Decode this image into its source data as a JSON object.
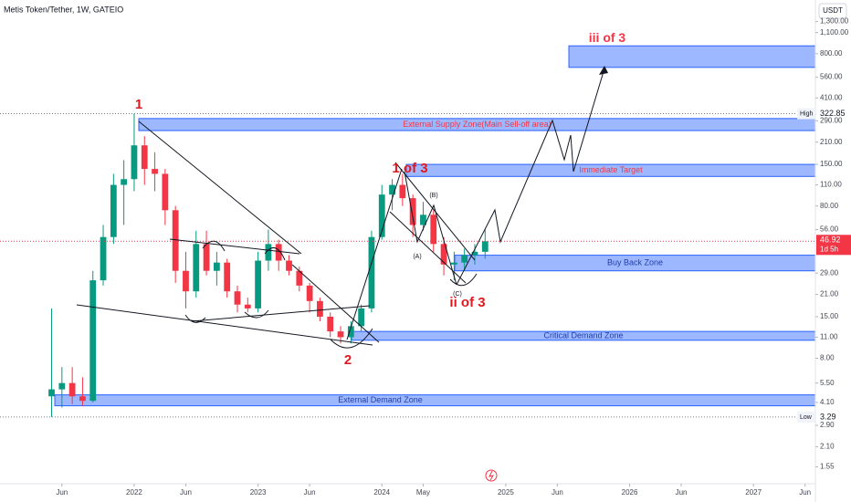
{
  "chart_data": {
    "type": "candlestick",
    "title": "Metis Token/Tether, 1W, GATEIO",
    "currency": "USDT",
    "log_scale": true,
    "grid": false,
    "up_color": "#089981",
    "down_color": "#f23645",
    "x": [
      "2021-05",
      "2021-06",
      "2021-07",
      "2021-08",
      "2021-09",
      "2021-10",
      "2021-11",
      "2021-12",
      "2022-01",
      "2022-02",
      "2022-03",
      "2022-04",
      "2022-05",
      "2022-06",
      "2022-07",
      "2022-08",
      "2022-09",
      "2022-10",
      "2022-11",
      "2022-12",
      "2023-01",
      "2023-02",
      "2023-03",
      "2023-04",
      "2023-05",
      "2023-06",
      "2023-07",
      "2023-08",
      "2023-09",
      "2023-10",
      "2023-11",
      "2023-12",
      "2024-01",
      "2024-02",
      "2024-03",
      "2024-04",
      "2024-05",
      "2024-06",
      "2024-07",
      "2024-08",
      "2024-09",
      "2024-10",
      "2024-11"
    ],
    "open": [
      4.5,
      5,
      5.5,
      4.5,
      4.2,
      26,
      50,
      110,
      120,
      200,
      140,
      130,
      75,
      30,
      22,
      45,
      30,
      34,
      22,
      18,
      17,
      35,
      45,
      35,
      30,
      24,
      19,
      15,
      12,
      11,
      13,
      17,
      50,
      95,
      110,
      90,
      60,
      70,
      45,
      33,
      34,
      38,
      40
    ],
    "high": [
      17,
      7,
      7,
      6,
      30,
      60,
      130,
      160,
      322.85,
      230,
      180,
      140,
      80,
      40,
      55,
      55,
      40,
      36,
      24,
      20,
      40,
      56,
      48,
      38,
      32,
      25,
      20,
      16,
      13,
      14,
      18,
      55,
      110,
      120,
      130,
      95,
      85,
      75,
      50,
      40,
      42,
      45,
      56
    ],
    "low": [
      3.29,
      3.8,
      4,
      3.9,
      4.1,
      24,
      45,
      60,
      100,
      110,
      100,
      60,
      25,
      17,
      20,
      28,
      24,
      20,
      16,
      16,
      16,
      30,
      30,
      28,
      22,
      16,
      14,
      11,
      10,
      10,
      12,
      16,
      48,
      75,
      80,
      50,
      55,
      40,
      28,
      26,
      30,
      33,
      36
    ],
    "close": [
      5,
      5.5,
      4.5,
      4.2,
      26,
      50,
      110,
      120,
      200,
      140,
      130,
      75,
      30,
      22,
      45,
      30,
      34,
      22,
      18,
      17,
      35,
      45,
      35,
      30,
      24,
      19,
      15,
      12,
      11,
      13,
      17,
      50,
      95,
      110,
      90,
      60,
      70,
      45,
      33,
      34,
      38,
      40,
      46.92
    ],
    "ylim": [
      1.2,
      1800
    ],
    "yticks": [
      {
        "value": 1300,
        "label": "1,300.00"
      },
      {
        "value": 1100,
        "label": "1,100.00"
      },
      {
        "value": 800,
        "label": "800.00"
      },
      {
        "value": 560,
        "label": "560.00"
      },
      {
        "value": 410,
        "label": "410.00"
      },
      {
        "value": 290,
        "label": "290.00"
      },
      {
        "value": 210,
        "label": "210.00"
      },
      {
        "value": 150,
        "label": "150.00"
      },
      {
        "value": 110,
        "label": "110.00"
      },
      {
        "value": 80,
        "label": "80.00"
      },
      {
        "value": 56,
        "label": "56.00"
      },
      {
        "value": 29,
        "label": "29.00"
      },
      {
        "value": 21,
        "label": "21.00"
      },
      {
        "value": 15,
        "label": "15.00"
      },
      {
        "value": 11,
        "label": "11.00"
      },
      {
        "value": 8,
        "label": "8.00"
      },
      {
        "value": 5.5,
        "label": "5.50"
      },
      {
        "value": 4.1,
        "label": "4.10"
      },
      {
        "value": 2.9,
        "label": "2.90"
      },
      {
        "value": 2.1,
        "label": "2.10"
      },
      {
        "value": 1.55,
        "label": "1.55"
      }
    ],
    "xlim": [
      "2020-12",
      "2027-07"
    ],
    "xticks": [
      {
        "value": "2021-06",
        "label": "Jun"
      },
      {
        "value": "2022-01",
        "label": "2022"
      },
      {
        "value": "2022-06",
        "label": "Jun"
      },
      {
        "value": "2023-01",
        "label": "2023"
      },
      {
        "value": "2023-06",
        "label": "Jun"
      },
      {
        "value": "2024-01",
        "label": "2024"
      },
      {
        "value": "2024-05",
        "label": "May"
      },
      {
        "value": "2025-01",
        "label": "2025"
      },
      {
        "value": "2025-06",
        "label": "Jun"
      },
      {
        "value": "2026-01",
        "label": "2026"
      },
      {
        "value": "2026-06",
        "label": "Jun"
      },
      {
        "value": "2027-01",
        "label": "2027"
      },
      {
        "value": "2027-06",
        "label": "Jun"
      }
    ],
    "high_marker": {
      "label": "High",
      "value": 322.85
    },
    "low_marker": {
      "label": "Low",
      "value": 3.29
    },
    "countdown": "1d 5h",
    "zones": [
      {
        "label": "External Supply Zone(Main Sell-off area)",
        "range": [
          250,
          300
        ],
        "text_color": "#f23645"
      },
      {
        "label": "Immediate Target",
        "range": [
          125,
          150
        ],
        "text_color": "#f23645"
      },
      {
        "label": "Buy Back Zone",
        "range": [
          30,
          38
        ],
        "text_color": "#1e3ea8"
      },
      {
        "label": "Critical Demand Zone",
        "range": [
          10.5,
          12
        ],
        "text_color": "#1e3ea8"
      },
      {
        "label": "External Demand Zone",
        "range": [
          3.9,
          4.6
        ],
        "text_color": "#1e3ea8"
      },
      {
        "label": "iii of 3",
        "range": [
          650,
          900
        ],
        "text_color": "#f23645"
      }
    ],
    "annotations": [
      "1",
      "2",
      "1 of 3",
      "ii of 3",
      "(A)",
      "(B)",
      "(C)"
    ]
  }
}
